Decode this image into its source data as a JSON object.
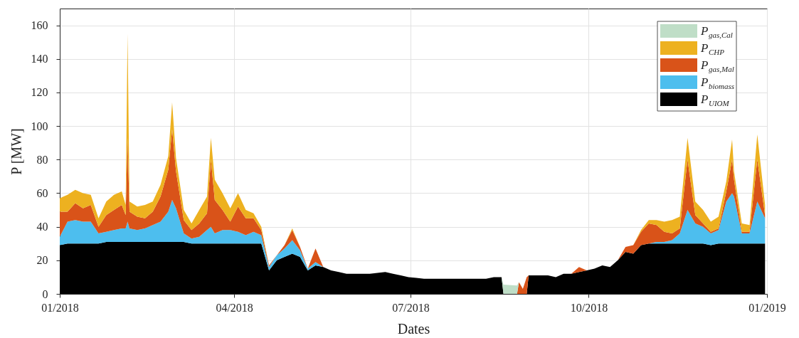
{
  "chart_data": {
    "type": "area",
    "stacked": true,
    "xlabel": "Dates",
    "ylabel": "P [MW]",
    "x": [
      "2018-01-01",
      "2018-01-05",
      "2018-01-09",
      "2018-01-13",
      "2018-01-17",
      "2018-01-21",
      "2018-01-25",
      "2018-01-29",
      "2018-02-02",
      "2018-02-04",
      "2018-02-05",
      "2018-02-06",
      "2018-02-10",
      "2018-02-14",
      "2018-02-18",
      "2018-02-22",
      "2018-02-26",
      "2018-02-28",
      "2018-03-02",
      "2018-03-06",
      "2018-03-10",
      "2018-03-14",
      "2018-03-18",
      "2018-03-20",
      "2018-03-22",
      "2018-03-26",
      "2018-03-30",
      "2018-04-03",
      "2018-04-07",
      "2018-04-11",
      "2018-04-15",
      "2018-04-19",
      "2018-04-23",
      "2018-04-27",
      "2018-05-01",
      "2018-05-05",
      "2018-05-09",
      "2018-05-13",
      "2018-05-17",
      "2018-05-21",
      "2018-05-25",
      "2018-05-29",
      "2018-06-02",
      "2018-06-06",
      "2018-06-10",
      "2018-06-14",
      "2018-06-18",
      "2018-06-22",
      "2018-06-26",
      "2018-06-30",
      "2018-07-04",
      "2018-07-08",
      "2018-07-12",
      "2018-07-16",
      "2018-07-20",
      "2018-07-24",
      "2018-07-28",
      "2018-08-01",
      "2018-08-05",
      "2018-08-09",
      "2018-08-13",
      "2018-08-17",
      "2018-08-18",
      "2018-08-25",
      "2018-08-26",
      "2018-08-28",
      "2018-08-30",
      "2018-08-31",
      "2018-09-02",
      "2018-09-06",
      "2018-09-10",
      "2018-09-14",
      "2018-09-18",
      "2018-09-22",
      "2018-09-26",
      "2018-09-30",
      "2018-10-04",
      "2018-10-08",
      "2018-10-12",
      "2018-10-16",
      "2018-10-20",
      "2018-10-24",
      "2018-10-28",
      "2018-11-01",
      "2018-11-05",
      "2018-11-09",
      "2018-11-13",
      "2018-11-17",
      "2018-11-21",
      "2018-11-25",
      "2018-11-29",
      "2018-12-03",
      "2018-12-07",
      "2018-12-11",
      "2018-12-14",
      "2018-12-15",
      "2018-12-19",
      "2018-12-23",
      "2018-12-27",
      "2018-12-31"
    ],
    "xlim": [
      "2018-01-01",
      "2019-01-01"
    ],
    "xticks": [
      {
        "value": "2018-01-01",
        "label": "01/2018"
      },
      {
        "value": "2018-04-01",
        "label": "04/2018"
      },
      {
        "value": "2018-07-01",
        "label": "07/2018"
      },
      {
        "value": "2018-10-01",
        "label": "10/2018"
      },
      {
        "value": "2019-01-01",
        "label": "01/2019"
      }
    ],
    "ylim": [
      0,
      170
    ],
    "yticks": [
      0,
      20,
      40,
      60,
      80,
      100,
      120,
      140,
      160
    ],
    "grid": true,
    "legend": "top right",
    "series": [
      {
        "name": "P$_{UIOM}$",
        "color": "#000000",
        "values": [
          29,
          30,
          30,
          30,
          30,
          30,
          31,
          31,
          31,
          31,
          31,
          31,
          31,
          31,
          31,
          31,
          31,
          31,
          31,
          31,
          30,
          30,
          30,
          30,
          30,
          30,
          30,
          30,
          30,
          30,
          30,
          14,
          20,
          22,
          24,
          22,
          14,
          17,
          16,
          14,
          13,
          12,
          12,
          12,
          12,
          12.5,
          13,
          12,
          11,
          10,
          9.5,
          9,
          9,
          9,
          9,
          9,
          9,
          9,
          9,
          9,
          10,
          10,
          0,
          0,
          0,
          0,
          0,
          11,
          11,
          11,
          11,
          10,
          12,
          12,
          13,
          14,
          15,
          17,
          16,
          20,
          25,
          24,
          29,
          30,
          30,
          30,
          30,
          30,
          30,
          30,
          30,
          29,
          30,
          30,
          30,
          30,
          30,
          30,
          30,
          30
        ]
      },
      {
        "name": "P$_{biomass}$",
        "color": "#4dbeee",
        "values": [
          5,
          13,
          14,
          13,
          13,
          6,
          6,
          7,
          8,
          8,
          12,
          8,
          7,
          8,
          10,
          12,
          18,
          25,
          20,
          5,
          3,
          4,
          8,
          10,
          6,
          8,
          8,
          7,
          5,
          7,
          5,
          2,
          3,
          5,
          8,
          4,
          1,
          2,
          0,
          0,
          0,
          0,
          0,
          0,
          0,
          0,
          0,
          0,
          0,
          0,
          0,
          0,
          0,
          0,
          0,
          0,
          0,
          0,
          0,
          0,
          0,
          0,
          0,
          0,
          0,
          0,
          0,
          0,
          0,
          0,
          0,
          0,
          0,
          0,
          0,
          0,
          0,
          0,
          0,
          0,
          0,
          0,
          0,
          0,
          1,
          1,
          2,
          6,
          20,
          12,
          10,
          7,
          8,
          25,
          30,
          28,
          6,
          6,
          25,
          15
        ]
      },
      {
        "name": "P$_{gas,Mal}$",
        "color": "#d95319",
        "values": [
          15,
          6,
          10,
          8,
          10,
          4,
          10,
          12,
          14,
          8,
          50,
          10,
          8,
          6,
          8,
          15,
          25,
          42,
          22,
          8,
          5,
          8,
          10,
          40,
          20,
          12,
          5,
          15,
          10,
          8,
          3,
          1,
          0,
          2,
          6,
          2,
          0,
          8,
          0,
          0,
          0,
          0,
          0,
          0,
          0,
          0,
          0,
          0,
          0,
          0,
          0,
          0,
          0,
          0,
          0,
          0,
          0,
          0,
          0,
          0,
          0,
          0,
          0,
          0,
          7,
          3,
          10,
          0,
          0,
          0,
          0,
          0,
          0,
          0,
          3,
          0,
          0,
          0,
          0,
          0,
          3,
          5,
          8,
          12,
          10,
          6,
          4,
          3,
          30,
          5,
          2,
          1,
          1,
          6,
          20,
          10,
          1,
          1,
          25,
          2
        ]
      },
      {
        "name": "P$_{CHP}$",
        "color": "#edb120",
        "values": [
          8,
          10,
          8,
          9,
          6,
          5,
          8,
          9,
          8,
          6,
          62,
          6,
          6,
          8,
          6,
          7,
          8,
          16,
          8,
          6,
          4,
          8,
          10,
          13,
          12,
          10,
          8,
          8,
          5,
          3,
          2,
          0,
          0,
          0,
          1,
          0,
          0,
          0,
          0,
          0,
          0,
          0,
          0,
          0,
          0,
          0,
          0,
          0,
          0,
          0,
          0,
          0,
          0,
          0,
          0,
          0,
          0,
          0,
          0,
          0,
          0,
          0,
          0,
          0,
          0,
          0,
          0,
          0,
          0,
          0,
          0,
          0,
          0,
          0,
          0,
          0,
          0,
          0,
          0,
          0,
          0,
          0,
          1,
          2,
          3,
          6,
          8,
          7,
          13,
          8,
          8,
          6,
          7,
          6,
          12,
          5,
          5,
          4,
          15,
          6
        ]
      },
      {
        "name": "P$_{gas,Cal}$",
        "color": "#bfdec7",
        "values": [
          null,
          null,
          null,
          null,
          null,
          null,
          null,
          null,
          null,
          null,
          null,
          null,
          null,
          null,
          null,
          null,
          null,
          null,
          null,
          null,
          null,
          null,
          null,
          null,
          null,
          null,
          null,
          null,
          null,
          null,
          null,
          null,
          null,
          null,
          null,
          null,
          null,
          null,
          null,
          null,
          null,
          null,
          null,
          null,
          null,
          null,
          null,
          null,
          null,
          null,
          null,
          null,
          null,
          null,
          null,
          null,
          null,
          null,
          null,
          null,
          null,
          0,
          5.5,
          5,
          0,
          null,
          null,
          null,
          null,
          null,
          null,
          null,
          null,
          null,
          null,
          null,
          null,
          null,
          null,
          null,
          null,
          null,
          null,
          null,
          null,
          null,
          null,
          null,
          null,
          null,
          null,
          null,
          null,
          null,
          null,
          null,
          null,
          null,
          null,
          null
        ]
      }
    ]
  }
}
